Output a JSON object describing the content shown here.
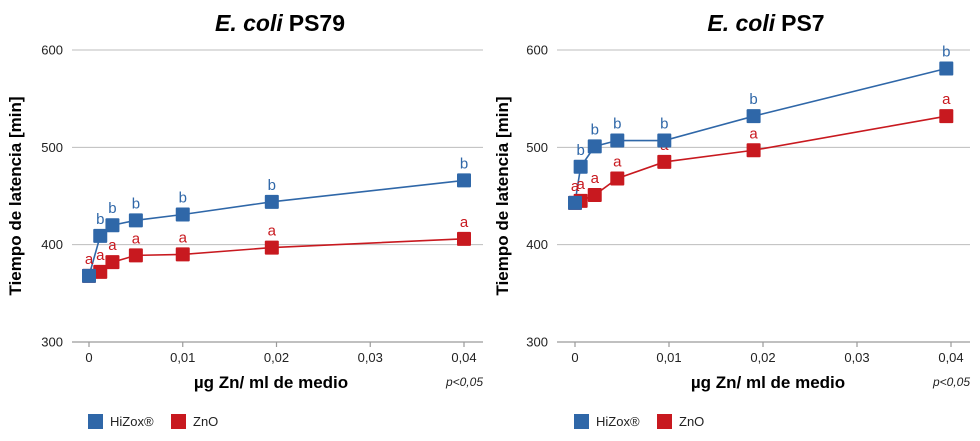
{
  "colors": {
    "hizox": "#2f67a8",
    "zno": "#c8191f",
    "grid": "#bdbdbd",
    "axis": "#9a9a9a"
  },
  "legend": [
    {
      "name": "HiZox®",
      "color": "#2f67a8"
    },
    {
      "name": "ZnO",
      "color": "#c8191f"
    }
  ],
  "chart_data": [
    {
      "type": "line",
      "title_italic": "E. coli",
      "title_rest": "PS79",
      "xlabel": "µg Zn/ ml de medio",
      "ylabel": "Tiempo de latencia [min]",
      "note": "p<0,05",
      "xlim": [
        0,
        0.04
      ],
      "ylim": [
        300,
        600
      ],
      "xticks": [
        0,
        0.01,
        0.02,
        0.03,
        0.04
      ],
      "xtick_labels": [
        "0",
        "0,01",
        "0,02",
        "0,03",
        "0,04"
      ],
      "yticks": [
        300,
        400,
        500,
        600
      ],
      "ytick_labels": [
        "300",
        "400",
        "500",
        "600"
      ],
      "series": [
        {
          "name": "HiZox®",
          "color": "#2f67a8",
          "x": [
            0,
            0.0012,
            0.0025,
            0.005,
            0.01,
            0.0195,
            0.04
          ],
          "y": [
            368,
            409,
            420,
            425,
            431,
            444,
            466
          ],
          "letters": [
            "",
            "b",
            "b",
            "b",
            "b",
            "b",
            "b"
          ]
        },
        {
          "name": "ZnO",
          "color": "#c8191f",
          "x": [
            0,
            0.0012,
            0.0025,
            0.005,
            0.01,
            0.0195,
            0.04
          ],
          "y": [
            368,
            372,
            382,
            389,
            390,
            397,
            406
          ],
          "letters": [
            "a",
            "a",
            "a",
            "a",
            "a",
            "a",
            "a"
          ]
        }
      ]
    },
    {
      "type": "line",
      "title_italic": "E. coli",
      "title_rest": "PS7",
      "xlabel": "µg Zn/ ml de medio",
      "ylabel": "Tiempo de latencia [min]",
      "note": "p<0,05",
      "xlim": [
        0,
        0.04
      ],
      "ylim": [
        300,
        600
      ],
      "xticks": [
        0,
        0.01,
        0.02,
        0.03,
        0.04
      ],
      "xtick_labels": [
        "0",
        "0,01",
        "0,02",
        "0,03",
        "0,04"
      ],
      "yticks": [
        300,
        400,
        500,
        600
      ],
      "ytick_labels": [
        "300",
        "400",
        "500",
        "600"
      ],
      "series": [
        {
          "name": "HiZox®",
          "color": "#2f67a8",
          "x": [
            0,
            0.0006,
            0.0021,
            0.0045,
            0.0095,
            0.019,
            0.0395
          ],
          "y": [
            443,
            480,
            501,
            507,
            507,
            532,
            581
          ],
          "letters": [
            "",
            "b",
            "b",
            "b",
            "b",
            "b",
            "b"
          ]
        },
        {
          "name": "ZnO",
          "color": "#c8191f",
          "x": [
            0,
            0.0006,
            0.0021,
            0.0045,
            0.0095,
            0.019,
            0.0395
          ],
          "y": [
            443,
            445,
            451,
            468,
            485,
            497,
            532
          ],
          "letters": [
            "a",
            "a",
            "a",
            "a",
            "a",
            "a",
            "a"
          ]
        }
      ]
    }
  ]
}
